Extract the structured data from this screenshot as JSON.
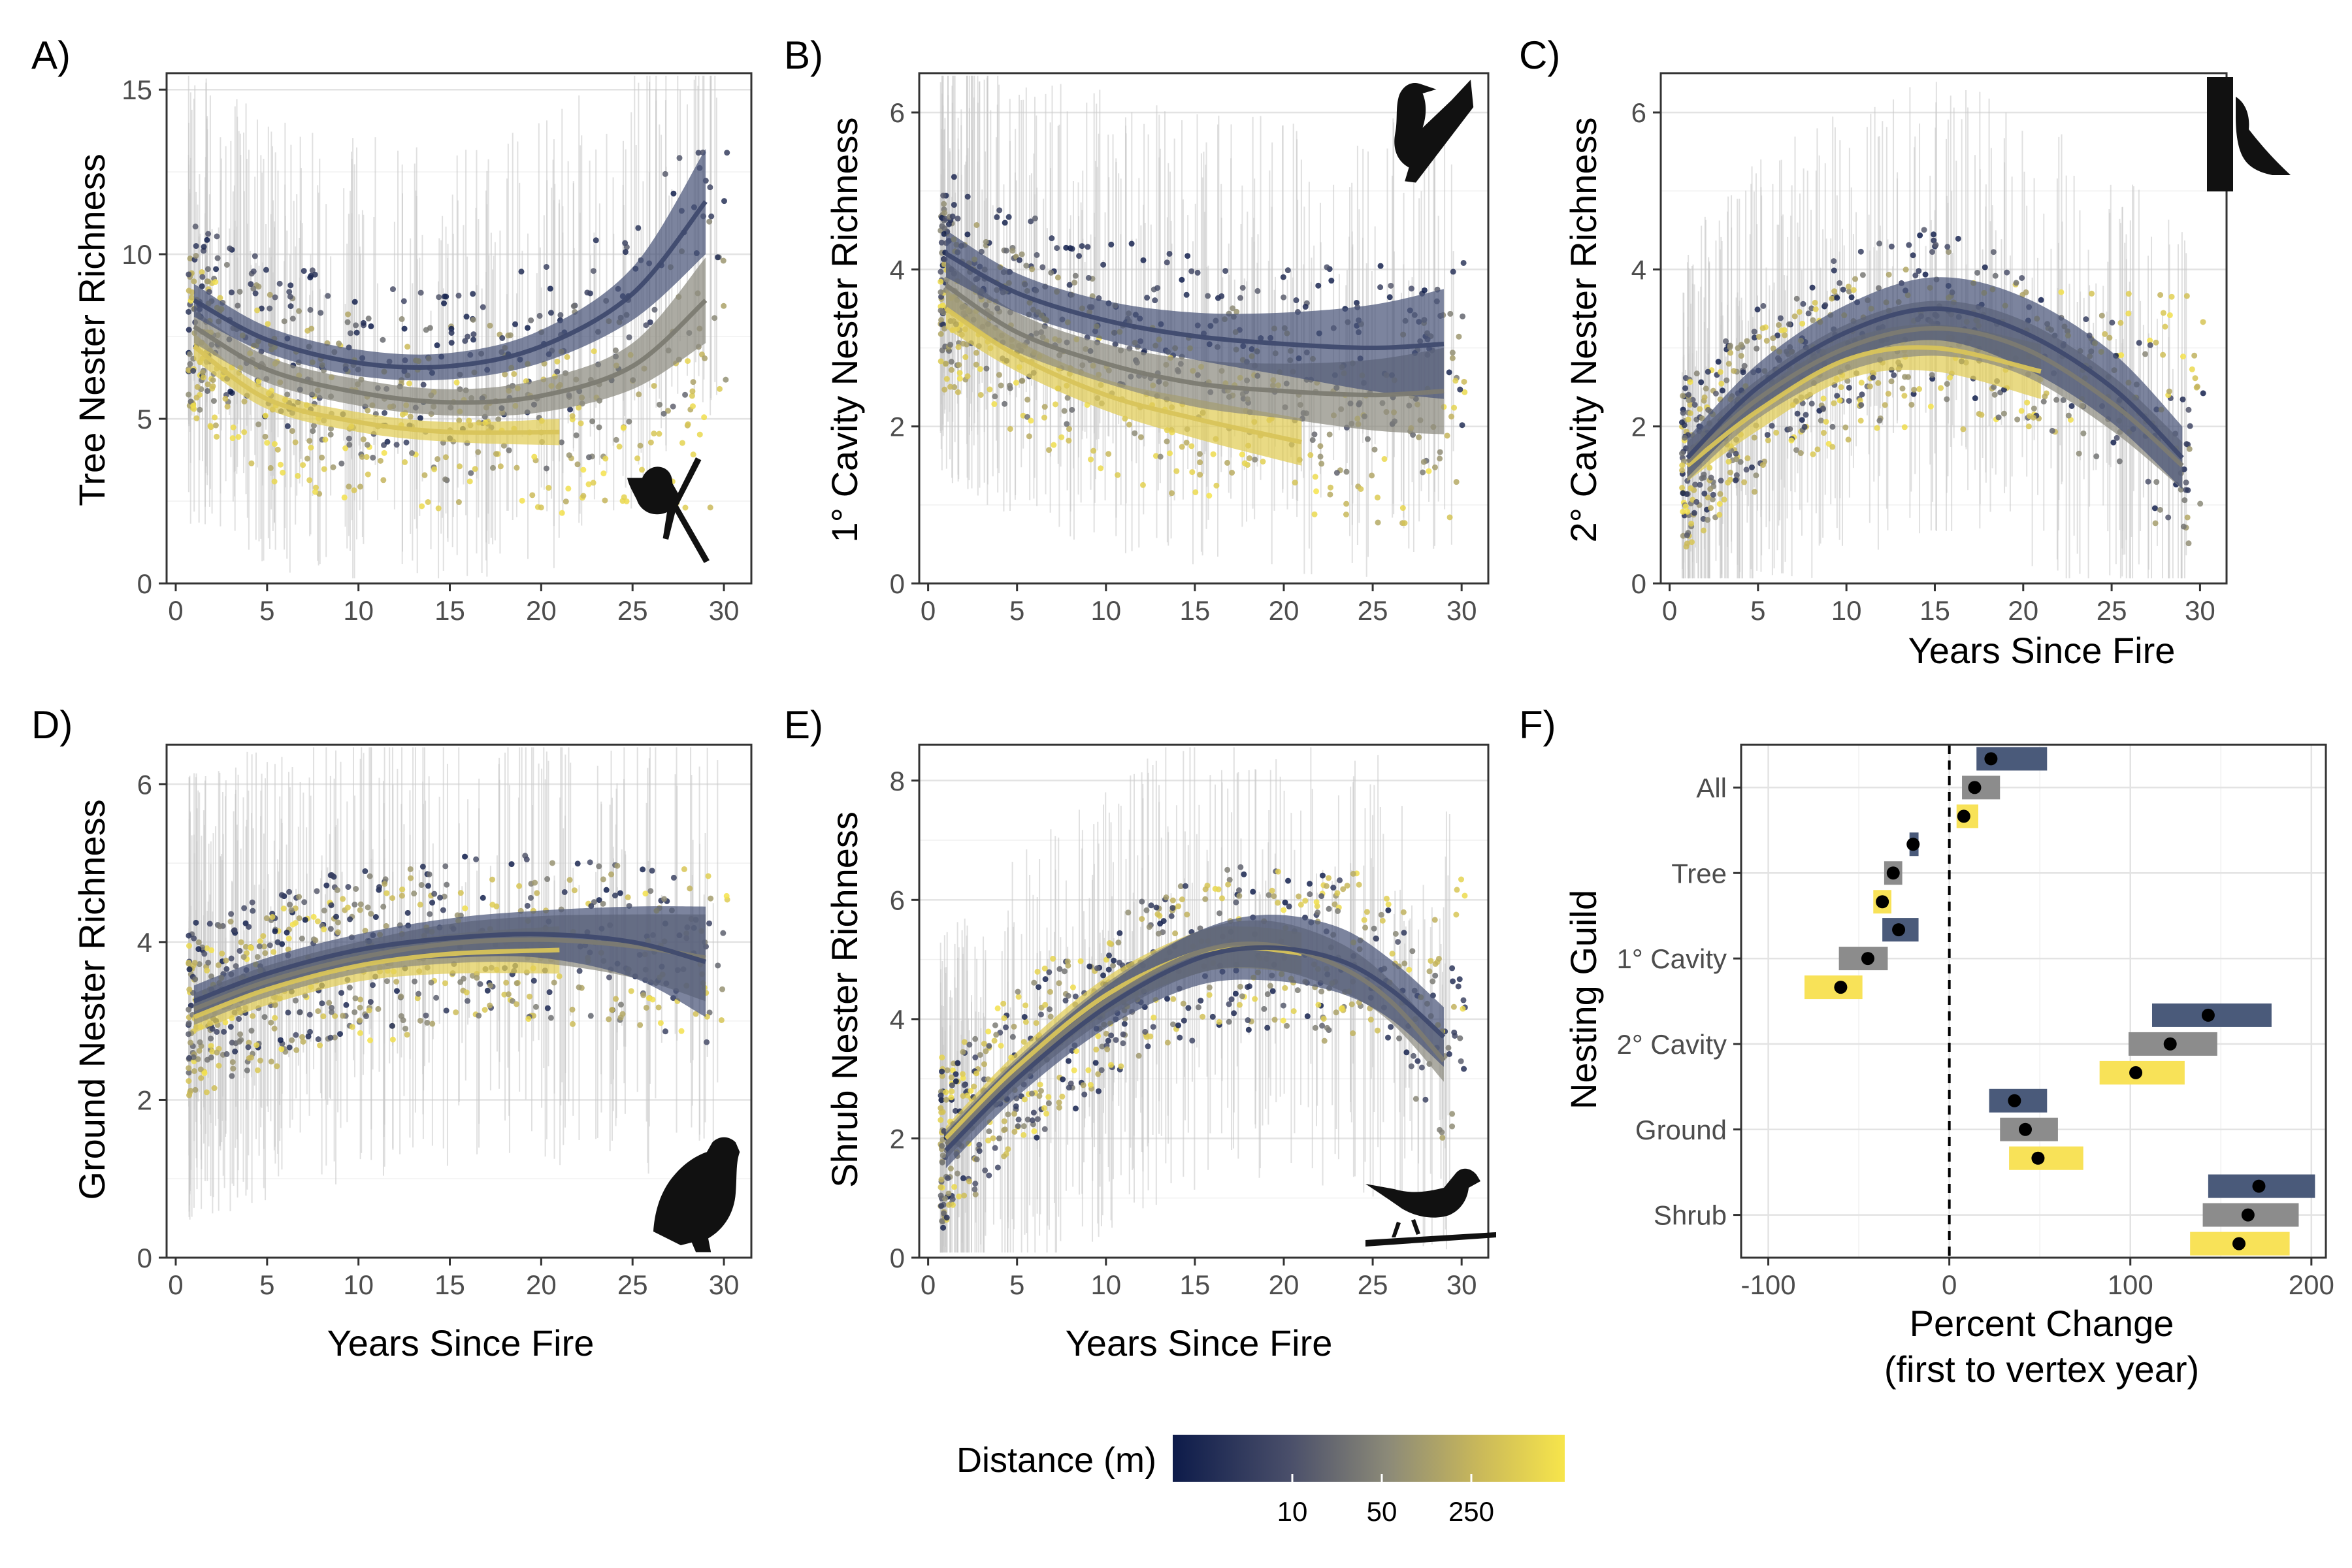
{
  "legend": {
    "title": "Distance (m)",
    "ticks": [
      "10",
      "50",
      "250"
    ],
    "colors": [
      "#0d1b4a",
      "#4a4f6a",
      "#8c8a78",
      "#c9b85a",
      "#f7e54b"
    ]
  },
  "colors": {
    "near": "#3f4a6e",
    "mid": "#7c7b72",
    "far": "#d8c45a",
    "ci_near": "#4a5578",
    "ci_mid": "#8c8b80",
    "ci_far": "#e1cc55",
    "guild_near": "#4a5a7a",
    "guild_mid": "#8c8c8c",
    "guild_far": "#f8e258",
    "grid": "#e3e3e3",
    "border": "#333333",
    "point_cloud": "#c8c8c8"
  },
  "chart_data": [
    {
      "id": "A",
      "label": "A)",
      "type": "line",
      "ylabel": "Tree Nester Richness",
      "xlabel": "",
      "xlim": [
        -0.5,
        31.5
      ],
      "ylim": [
        0,
        15.5
      ],
      "xticks": [
        0,
        5,
        10,
        15,
        20,
        25,
        30
      ],
      "yticks": [
        0,
        5,
        10,
        15
      ],
      "icon": "bird-perched-icon",
      "series": [
        {
          "name": "near",
          "x": [
            1,
            5,
            10,
            15,
            20,
            25,
            29
          ],
          "y": [
            8.6,
            7.4,
            6.7,
            6.6,
            7.2,
            8.8,
            11.6
          ],
          "ci": [
            0.5,
            0.4,
            0.4,
            0.4,
            0.5,
            0.8,
            1.6
          ]
        },
        {
          "name": "mid",
          "x": [
            1,
            5,
            10,
            15,
            20,
            25,
            29
          ],
          "y": [
            7.8,
            6.5,
            5.8,
            5.5,
            5.7,
            6.6,
            8.6
          ],
          "ci": [
            0.5,
            0.4,
            0.4,
            0.4,
            0.5,
            0.7,
            1.3
          ]
        },
        {
          "name": "far",
          "x": [
            1,
            5,
            10,
            15,
            21
          ],
          "y": [
            7.2,
            5.6,
            4.9,
            4.6,
            4.6
          ],
          "ci": [
            0.4,
            0.3,
            0.3,
            0.3,
            0.4
          ]
        }
      ]
    },
    {
      "id": "B",
      "label": "B)",
      "type": "line",
      "ylabel": "1° Cavity Nester Richness",
      "xlabel": "",
      "xlim": [
        -0.5,
        31.5
      ],
      "ylim": [
        0,
        6.5
      ],
      "xticks": [
        0,
        5,
        10,
        15,
        20,
        25,
        30
      ],
      "yticks": [
        0,
        2,
        4,
        6
      ],
      "icon": "woodpecker-icon",
      "series": [
        {
          "name": "near",
          "x": [
            1,
            5,
            10,
            15,
            20,
            25,
            29
          ],
          "y": [
            4.2,
            3.7,
            3.35,
            3.15,
            3.05,
            3.0,
            3.05
          ],
          "ci": [
            0.3,
            0.25,
            0.25,
            0.3,
            0.4,
            0.55,
            0.7
          ]
        },
        {
          "name": "mid",
          "x": [
            1,
            5,
            10,
            15,
            20,
            25,
            29
          ],
          "y": [
            3.8,
            3.2,
            2.8,
            2.55,
            2.45,
            2.4,
            2.45
          ],
          "ci": [
            0.3,
            0.25,
            0.25,
            0.3,
            0.35,
            0.45,
            0.55
          ]
        },
        {
          "name": "far",
          "x": [
            1,
            5,
            10,
            15,
            21
          ],
          "y": [
            3.5,
            2.9,
            2.4,
            2.1,
            1.8
          ],
          "ci": [
            0.25,
            0.2,
            0.2,
            0.25,
            0.3
          ]
        }
      ]
    },
    {
      "id": "C",
      "label": "C)",
      "type": "line",
      "ylabel": "2° Cavity Nester Richness",
      "xlabel": "Years Since Fire",
      "xlim": [
        -0.5,
        31.5
      ],
      "ylim": [
        0,
        6.5
      ],
      "xticks": [
        0,
        5,
        10,
        15,
        20,
        25,
        30
      ],
      "yticks": [
        0,
        2,
        4,
        6
      ],
      "icon": "nuthatch-on-trunk-icon",
      "series": [
        {
          "name": "near",
          "x": [
            1,
            5,
            10,
            15,
            20,
            25,
            29
          ],
          "y": [
            1.6,
            2.5,
            3.2,
            3.5,
            3.2,
            2.5,
            1.6
          ],
          "ci": [
            0.25,
            0.3,
            0.35,
            0.4,
            0.45,
            0.45,
            0.4
          ]
        },
        {
          "name": "mid",
          "x": [
            1,
            5,
            10,
            15,
            20,
            25,
            29
          ],
          "y": [
            1.55,
            2.35,
            3.0,
            3.25,
            3.0,
            2.3,
            1.5
          ],
          "ci": [
            0.25,
            0.25,
            0.3,
            0.35,
            0.35,
            0.35,
            0.3
          ]
        },
        {
          "name": "far",
          "x": [
            1,
            5,
            10,
            15,
            21
          ],
          "y": [
            1.5,
            2.2,
            2.85,
            3.0,
            2.7
          ],
          "ci": [
            0.2,
            0.25,
            0.25,
            0.3,
            0.35
          ]
        }
      ]
    },
    {
      "id": "D",
      "label": "D)",
      "type": "line",
      "ylabel": "Ground Nester Richness",
      "xlabel": "Years Since Fire",
      "xlim": [
        -0.5,
        31.5
      ],
      "ylim": [
        0,
        6.5
      ],
      "xticks": [
        0,
        5,
        10,
        15,
        20,
        25,
        30
      ],
      "yticks": [
        0,
        2,
        4,
        6
      ],
      "icon": "ground-bird-icon",
      "series": [
        {
          "name": "near",
          "x": [
            1,
            5,
            10,
            15,
            20,
            25,
            29
          ],
          "y": [
            3.25,
            3.6,
            3.9,
            4.05,
            4.1,
            4.0,
            3.75
          ],
          "ci": [
            0.2,
            0.2,
            0.2,
            0.25,
            0.3,
            0.45,
            0.7
          ]
        },
        {
          "name": "mid",
          "x": [
            1,
            5,
            10,
            15,
            20,
            25,
            29
          ],
          "y": [
            3.15,
            3.5,
            3.8,
            3.98,
            4.03,
            3.95,
            3.8
          ],
          "ci": [
            0.2,
            0.2,
            0.2,
            0.25,
            0.3,
            0.4,
            0.55
          ]
        },
        {
          "name": "far",
          "x": [
            1,
            5,
            10,
            15,
            21
          ],
          "y": [
            3.05,
            3.4,
            3.7,
            3.85,
            3.9
          ],
          "ci": [
            0.2,
            0.2,
            0.2,
            0.25,
            0.3
          ]
        }
      ]
    },
    {
      "id": "E",
      "label": "E)",
      "type": "line",
      "ylabel": "Shrub Nester Richness",
      "xlabel": "Years Since Fire",
      "xlim": [
        -0.5,
        31.5
      ],
      "ylim": [
        0,
        8.6
      ],
      "xticks": [
        0,
        5,
        10,
        15,
        20,
        25,
        30
      ],
      "yticks": [
        0,
        2,
        4,
        6,
        8
      ],
      "icon": "songbird-on-branch-icon",
      "series": [
        {
          "name": "near",
          "x": [
            1,
            5,
            10,
            15,
            19,
            23,
            26,
            29
          ],
          "y": [
            1.8,
            3.0,
            4.2,
            5.0,
            5.2,
            5.0,
            4.5,
            3.7
          ],
          "ci": [
            0.3,
            0.3,
            0.35,
            0.45,
            0.55,
            0.55,
            0.5,
            0.5
          ]
        },
        {
          "name": "mid",
          "x": [
            1,
            5,
            10,
            15,
            19,
            23,
            26,
            29
          ],
          "y": [
            1.9,
            3.1,
            4.3,
            5.1,
            5.25,
            4.9,
            4.3,
            3.3
          ],
          "ci": [
            0.25,
            0.25,
            0.3,
            0.35,
            0.4,
            0.4,
            0.35,
            0.35
          ]
        },
        {
          "name": "far",
          "x": [
            1,
            5,
            10,
            15,
            18,
            21
          ],
          "y": [
            2.0,
            3.2,
            4.4,
            5.1,
            5.2,
            5.1
          ],
          "ci": [
            0.2,
            0.25,
            0.3,
            0.35,
            0.35,
            0.35
          ]
        }
      ]
    },
    {
      "id": "F",
      "label": "F)",
      "type": "bar",
      "ylabel": "Nesting Guild",
      "xlabel": "Percent Change",
      "xlabel2": "(first to vertex year)",
      "xlim": [
        -115,
        208
      ],
      "xticks": [
        -100,
        0,
        100,
        200
      ],
      "xtick_labels": [
        "-100",
        "0",
        "100",
        "200"
      ],
      "categories": [
        "All",
        "Tree",
        "1° Cavity",
        "2° Cavity",
        "Ground",
        "Shrub"
      ],
      "series": [
        {
          "name": "near",
          "values": [
            23,
            -20,
            -28,
            143,
            36,
            171
          ],
          "ci": [
            [
              15,
              54
            ],
            [
              -22,
              -17
            ],
            [
              -37,
              -17
            ],
            [
              112,
              178
            ],
            [
              22,
              54
            ],
            [
              143,
              202
            ]
          ]
        },
        {
          "name": "mid",
          "values": [
            14,
            -31,
            -45,
            122,
            42,
            165
          ],
          "ci": [
            [
              7,
              28
            ],
            [
              -36,
              -26
            ],
            [
              -61,
              -34
            ],
            [
              99,
              148
            ],
            [
              28,
              60
            ],
            [
              140,
              193
            ]
          ]
        },
        {
          "name": "far",
          "values": [
            8,
            -37,
            -60,
            103,
            49,
            160
          ],
          "ci": [
            [
              4,
              16
            ],
            [
              -42,
              -32
            ],
            [
              -80,
              -48
            ],
            [
              83,
              130
            ],
            [
              33,
              74
            ],
            [
              133,
              188
            ]
          ]
        }
      ]
    }
  ]
}
